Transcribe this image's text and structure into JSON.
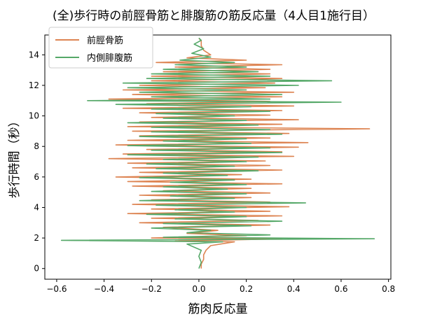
{
  "chart_data": {
    "type": "line",
    "title": "(全)歩行時の前脛骨筋と腓腹筋の筋反応量（4人目1施行目）",
    "xlabel": "筋肉反応量",
    "ylabel": "歩行時間（秒）",
    "xlim": [
      -0.65,
      0.81
    ],
    "ylim": [
      -0.7,
      15.3
    ],
    "xticks": [
      -0.6,
      -0.4,
      -0.2,
      0.0,
      0.2,
      0.4,
      0.6,
      0.8
    ],
    "xtick_labels": [
      "−0.6",
      "−0.4",
      "−0.2",
      "0.0",
      "0.2",
      "0.4",
      "0.6",
      "0.8"
    ],
    "yticks": [
      0,
      2,
      4,
      6,
      8,
      10,
      12,
      14
    ],
    "ytick_labels": [
      "0",
      "2",
      "4",
      "6",
      "8",
      "10",
      "12",
      "14"
    ],
    "grid": false,
    "legend_position": "top-left",
    "series": [
      {
        "name": "前脛骨筋",
        "color": "#dd8452",
        "points": [
          [
            0.01,
            0.0
          ],
          [
            0.01,
            0.3
          ],
          [
            0.02,
            0.6
          ],
          [
            0.02,
            0.9
          ],
          [
            0.03,
            1.2
          ],
          [
            0.05,
            1.5
          ],
          [
            0.15,
            1.75
          ],
          [
            -0.1,
            1.8
          ],
          [
            0.35,
            1.95
          ],
          [
            -0.2,
            2.0
          ],
          [
            0.2,
            2.15
          ],
          [
            -0.05,
            2.3
          ],
          [
            0.08,
            2.5
          ],
          [
            -0.15,
            2.7
          ],
          [
            0.3,
            2.85
          ],
          [
            -0.25,
            3.0
          ],
          [
            0.25,
            3.15
          ],
          [
            -0.2,
            3.3
          ],
          [
            0.35,
            3.45
          ],
          [
            -0.3,
            3.6
          ],
          [
            0.3,
            3.75
          ],
          [
            -0.2,
            3.9
          ],
          [
            0.38,
            4.05
          ],
          [
            -0.28,
            4.2
          ],
          [
            0.3,
            4.35
          ],
          [
            -0.2,
            4.5
          ],
          [
            0.22,
            4.65
          ],
          [
            -0.25,
            4.8
          ],
          [
            0.3,
            4.95
          ],
          [
            -0.15,
            5.1
          ],
          [
            0.22,
            5.25
          ],
          [
            -0.28,
            5.4
          ],
          [
            0.35,
            5.55
          ],
          [
            -0.3,
            5.7
          ],
          [
            0.22,
            5.85
          ],
          [
            -0.35,
            6.0
          ],
          [
            0.18,
            6.15
          ],
          [
            -0.25,
            6.3
          ],
          [
            0.35,
            6.45
          ],
          [
            -0.28,
            6.6
          ],
          [
            0.3,
            6.75
          ],
          [
            -0.3,
            6.9
          ],
          [
            0.28,
            7.05
          ],
          [
            -0.38,
            7.2
          ],
          [
            0.4,
            7.35
          ],
          [
            -0.32,
            7.5
          ],
          [
            0.35,
            7.65
          ],
          [
            -0.22,
            7.8
          ],
          [
            0.42,
            7.95
          ],
          [
            -0.35,
            8.1
          ],
          [
            0.46,
            8.25
          ],
          [
            -0.3,
            8.4
          ],
          [
            0.3,
            8.55
          ],
          [
            -0.25,
            8.7
          ],
          [
            0.38,
            8.85
          ],
          [
            -0.28,
            9.0
          ],
          [
            0.72,
            9.15
          ],
          [
            -0.3,
            9.3
          ],
          [
            0.35,
            9.45
          ],
          [
            -0.25,
            9.6
          ],
          [
            0.42,
            9.75
          ],
          [
            -0.2,
            9.9
          ],
          [
            0.3,
            10.05
          ],
          [
            -0.25,
            10.2
          ],
          [
            0.35,
            10.35
          ],
          [
            -0.32,
            10.5
          ],
          [
            0.4,
            10.65
          ],
          [
            -0.22,
            10.8
          ],
          [
            0.3,
            10.95
          ],
          [
            -0.38,
            11.1
          ],
          [
            0.35,
            11.25
          ],
          [
            -0.28,
            11.4
          ],
          [
            0.4,
            11.55
          ],
          [
            -0.32,
            11.7
          ],
          [
            0.28,
            11.85
          ],
          [
            -0.25,
            12.0
          ],
          [
            0.32,
            12.15
          ],
          [
            -0.2,
            12.3
          ],
          [
            0.35,
            12.45
          ],
          [
            -0.2,
            12.6
          ],
          [
            0.3,
            12.75
          ],
          [
            -0.15,
            12.9
          ],
          [
            0.3,
            13.05
          ],
          [
            -0.1,
            13.2
          ],
          [
            0.35,
            13.35
          ],
          [
            -0.18,
            13.5
          ],
          [
            0.2,
            13.65
          ],
          [
            -0.05,
            13.8
          ],
          [
            0.05,
            14.0
          ],
          [
            0.02,
            14.3
          ],
          [
            0.01,
            14.6
          ],
          [
            0.01,
            14.9
          ],
          [
            0.0,
            15.1
          ]
        ]
      },
      {
        "name": "内側腓腹筋",
        "color": "#55a868",
        "points": [
          [
            0.0,
            0.0
          ],
          [
            0.01,
            0.4
          ],
          [
            0.0,
            0.8
          ],
          [
            0.01,
            1.2
          ],
          [
            -0.05,
            1.6
          ],
          [
            0.1,
            1.75
          ],
          [
            -0.58,
            1.85
          ],
          [
            0.74,
            1.95
          ],
          [
            -0.15,
            2.05
          ],
          [
            0.3,
            2.2
          ],
          [
            -0.05,
            2.35
          ],
          [
            0.05,
            2.5
          ],
          [
            -0.2,
            2.65
          ],
          [
            0.22,
            2.8
          ],
          [
            -0.15,
            2.95
          ],
          [
            0.35,
            3.1
          ],
          [
            -0.1,
            3.25
          ],
          [
            0.2,
            3.4
          ],
          [
            -0.22,
            3.55
          ],
          [
            0.15,
            3.7
          ],
          [
            -0.1,
            3.85
          ],
          [
            0.2,
            4.0
          ],
          [
            -0.18,
            4.15
          ],
          [
            0.45,
            4.3
          ],
          [
            -0.25,
            4.45
          ],
          [
            0.15,
            4.6
          ],
          [
            -0.12,
            4.75
          ],
          [
            0.2,
            4.9
          ],
          [
            -0.2,
            5.05
          ],
          [
            0.12,
            5.2
          ],
          [
            -0.15,
            5.35
          ],
          [
            0.2,
            5.5
          ],
          [
            -0.12,
            5.65
          ],
          [
            0.15,
            5.8
          ],
          [
            -0.25,
            5.95
          ],
          [
            0.12,
            6.1
          ],
          [
            -0.15,
            6.25
          ],
          [
            0.25,
            6.4
          ],
          [
            -0.18,
            6.55
          ],
          [
            0.15,
            6.7
          ],
          [
            -0.22,
            6.85
          ],
          [
            0.2,
            7.0
          ],
          [
            -0.15,
            7.15
          ],
          [
            0.25,
            7.3
          ],
          [
            -0.3,
            7.45
          ],
          [
            0.35,
            7.6
          ],
          [
            -0.2,
            7.75
          ],
          [
            0.3,
            7.9
          ],
          [
            -0.3,
            8.05
          ],
          [
            0.22,
            8.2
          ],
          [
            -0.15,
            8.35
          ],
          [
            0.2,
            8.5
          ],
          [
            -0.25,
            8.65
          ],
          [
            0.35,
            8.8
          ],
          [
            -0.2,
            8.95
          ],
          [
            0.3,
            9.1
          ],
          [
            -0.2,
            9.25
          ],
          [
            0.25,
            9.4
          ],
          [
            -0.3,
            9.55
          ],
          [
            0.2,
            9.7
          ],
          [
            -0.15,
            9.85
          ],
          [
            0.15,
            10.0
          ],
          [
            -0.18,
            10.15
          ],
          [
            0.3,
            10.3
          ],
          [
            -0.2,
            10.45
          ],
          [
            0.22,
            10.6
          ],
          [
            -0.35,
            10.75
          ],
          [
            0.6,
            10.9
          ],
          [
            -0.47,
            11.0
          ],
          [
            0.3,
            11.1
          ],
          [
            -0.2,
            11.25
          ],
          [
            0.35,
            11.4
          ],
          [
            -0.25,
            11.55
          ],
          [
            0.2,
            11.7
          ],
          [
            -0.3,
            11.85
          ],
          [
            0.42,
            12.0
          ],
          [
            -0.32,
            12.15
          ],
          [
            0.56,
            12.3
          ],
          [
            -0.22,
            12.45
          ],
          [
            0.3,
            12.6
          ],
          [
            -0.2,
            12.75
          ],
          [
            0.25,
            12.9
          ],
          [
            -0.15,
            13.05
          ],
          [
            0.2,
            13.2
          ],
          [
            -0.1,
            13.35
          ],
          [
            0.15,
            13.5
          ],
          [
            -0.08,
            13.65
          ],
          [
            0.05,
            13.85
          ],
          [
            -0.03,
            14.1
          ],
          [
            0.02,
            14.4
          ],
          [
            -0.02,
            14.7
          ],
          [
            0.01,
            14.95
          ],
          [
            0.0,
            15.1
          ]
        ]
      }
    ]
  }
}
